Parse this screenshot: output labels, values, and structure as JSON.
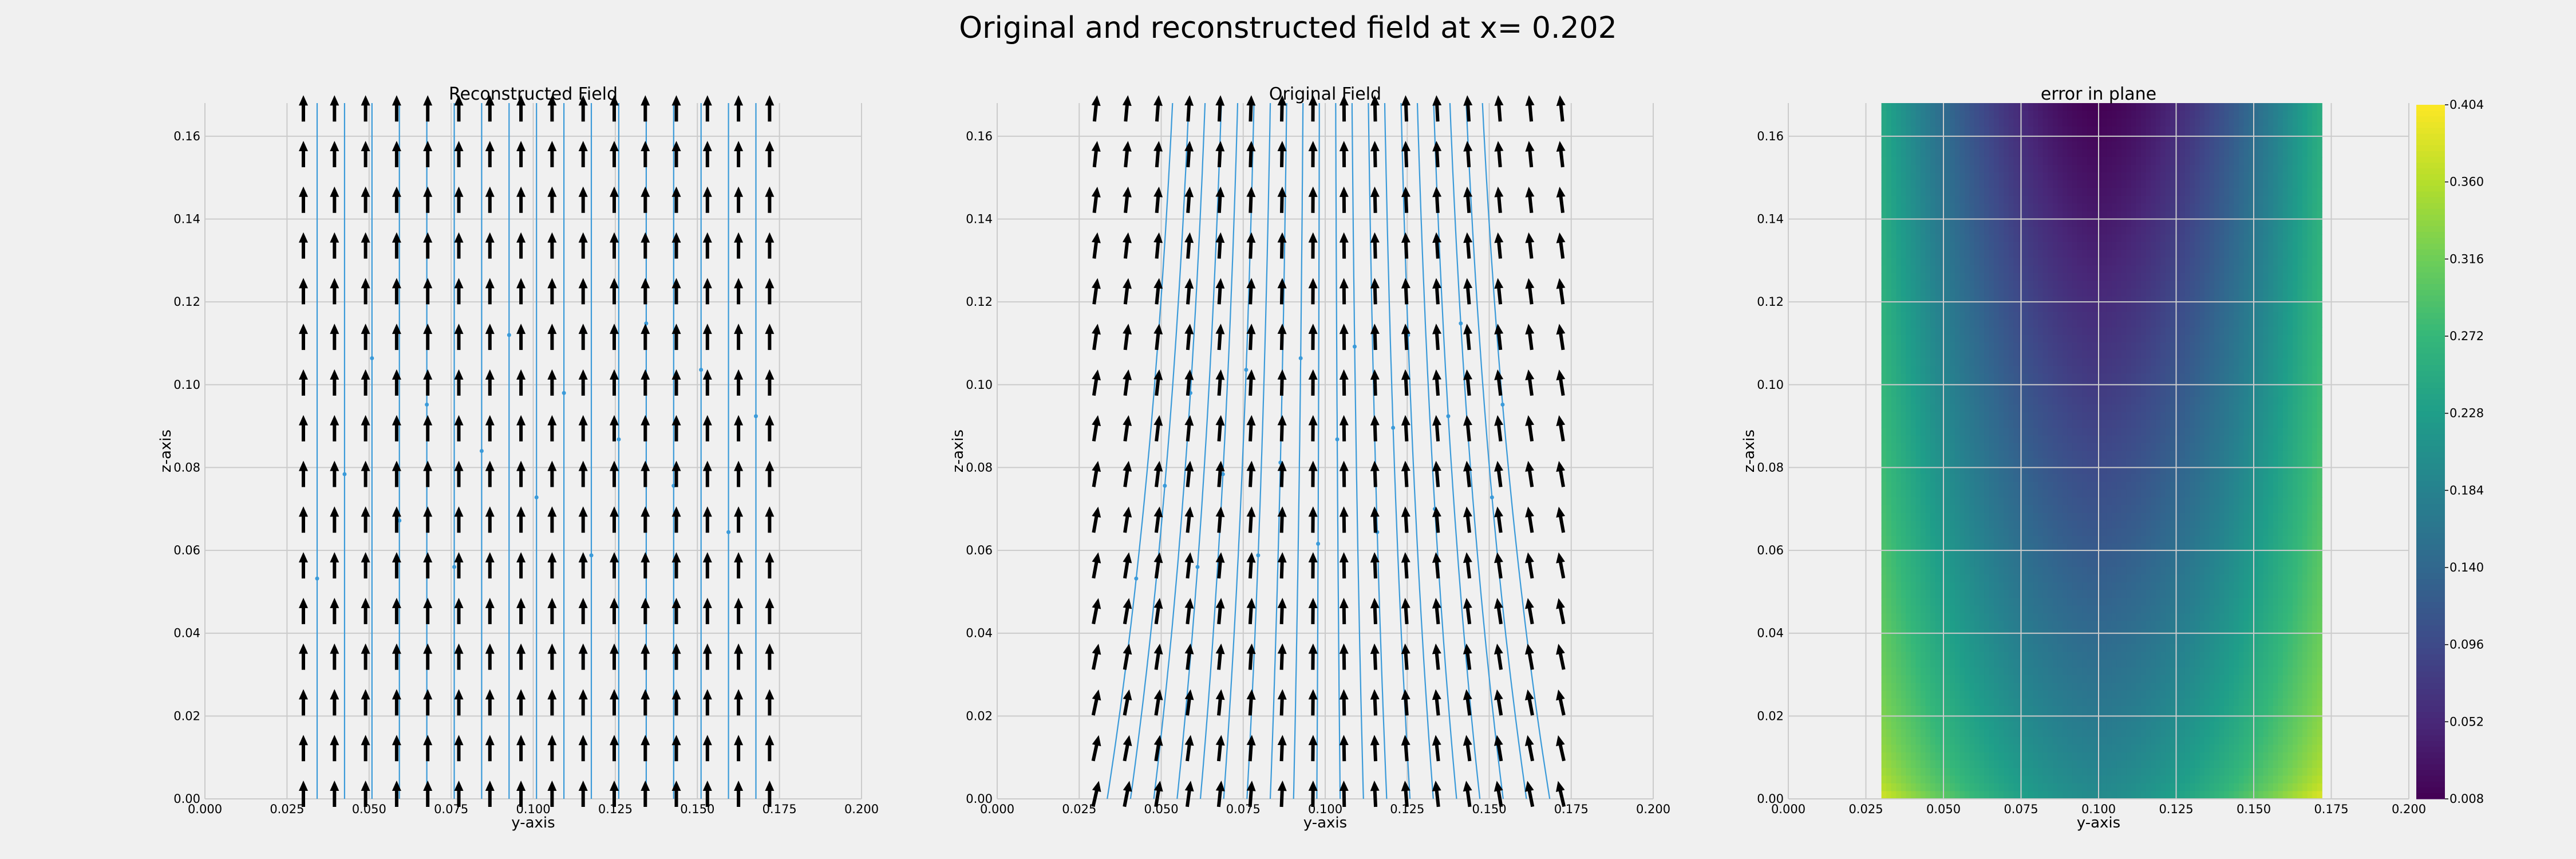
{
  "figure": {
    "title": "Original and reconstructed field at x= 0.202",
    "background": "#f0f0f0",
    "grid_color": "#cbcbcb",
    "stream_color": "#3a9ad9",
    "arrow_color": "#000000"
  },
  "chart_data": [
    {
      "type": "quiver+streamplot",
      "title": "Reconstructed Field",
      "xlabel": "y-axis",
      "ylabel": "z-axis",
      "xlim": [
        0.0,
        0.2
      ],
      "ylim": [
        0.0,
        0.168
      ],
      "xticks": [
        "0.000",
        "0.025",
        "0.050",
        "0.075",
        "0.100",
        "0.125",
        "0.150",
        "0.175",
        "0.200"
      ],
      "yticks": [
        "0.00",
        "0.02",
        "0.04",
        "0.06",
        "0.08",
        "0.10",
        "0.12",
        "0.14",
        "0.16"
      ],
      "grid": true,
      "domain_y": [
        0.03,
        0.172
      ],
      "domain_z": [
        0.0,
        0.168
      ],
      "grid_points": [
        16,
        16
      ],
      "field_direction": "+z (vertical)",
      "field_tilt_amplitude_deg": 0,
      "stream_lines": 17
    },
    {
      "type": "quiver+streamplot",
      "title": "Original Field",
      "xlabel": "y-axis",
      "ylabel": "z-axis",
      "xlim": [
        0.0,
        0.2
      ],
      "ylim": [
        0.0,
        0.168
      ],
      "xticks": [
        "0.000",
        "0.025",
        "0.050",
        "0.075",
        "0.100",
        "0.125",
        "0.150",
        "0.175",
        "0.200"
      ],
      "yticks": [
        "0.00",
        "0.02",
        "0.04",
        "0.06",
        "0.08",
        "0.10",
        "0.12",
        "0.14",
        "0.16"
      ],
      "grid": true,
      "domain_y": [
        0.03,
        0.172
      ],
      "domain_z": [
        0.0,
        0.168
      ],
      "grid_points": [
        16,
        16
      ],
      "field_direction": "+z, tilted toward center at bottom",
      "field_tilt_amplitude_deg": 13,
      "stream_lines": 20
    },
    {
      "type": "heatmap",
      "title": "error in plane",
      "xlabel": "y-axis",
      "ylabel": "z-axis",
      "xlim": [
        0.0,
        0.2
      ],
      "ylim": [
        0.0,
        0.168
      ],
      "xticks": [
        "0.000",
        "0.025",
        "0.050",
        "0.075",
        "0.100",
        "0.125",
        "0.150",
        "0.175",
        "0.200"
      ],
      "yticks": [
        "0.00",
        "0.02",
        "0.04",
        "0.06",
        "0.08",
        "0.10",
        "0.12",
        "0.14",
        "0.16"
      ],
      "grid": true,
      "domain_y": [
        0.03,
        0.172
      ],
      "domain_z": [
        0.0,
        0.168
      ],
      "colormap": "viridis",
      "vmin": 0.008,
      "vmax": 0.404,
      "colorbar_ticks": [
        "0.008",
        "0.052",
        "0.096",
        "0.140",
        "0.184",
        "0.228",
        "0.272",
        "0.316",
        "0.360",
        "0.404"
      ],
      "error_center_y": 0.1,
      "error_at_center_top": 0.008,
      "error_at_center_bottom": 0.2,
      "error_at_edges_top": 0.25,
      "error_at_corners_bottom": 0.404
    }
  ]
}
